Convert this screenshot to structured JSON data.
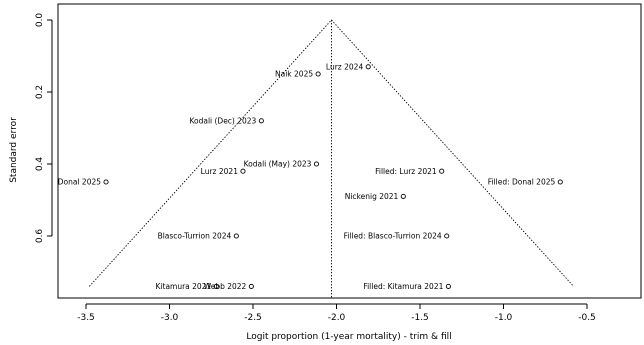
{
  "chart_data": {
    "type": "scatter",
    "subtype": "funnel-plot",
    "xlabel": "Logit proportion (1-year mortality) - trim & fill",
    "ylabel": "Standard error",
    "xlim": [
      -3.55,
      -0.7
    ],
    "ylim": [
      0,
      0.75
    ],
    "y_reversed": true,
    "xticks": [
      -3.5,
      -3.0,
      -2.5,
      -2.0,
      -1.5,
      -1.0,
      -0.5
    ],
    "xtick_labels": [
      "-3.5",
      "-3.0",
      "-2.5",
      "-2.0",
      "-1.5",
      "-1.0",
      "-0.5"
    ],
    "yticks": [
      0.0,
      0.2,
      0.4,
      0.6
    ],
    "ytick_labels": [
      "0.0",
      "0.2",
      "0.4",
      "0.6"
    ],
    "center_estimate": -2.03,
    "funnel": {
      "apex": [
        -2.03,
        0
      ],
      "bottom_left": [
        -3.48,
        0.74
      ],
      "bottom_right": [
        -0.58,
        0.74
      ]
    },
    "points": [
      {
        "label": "Lurz 2024",
        "x": -1.81,
        "y": 0.13,
        "label_side": "left"
      },
      {
        "label": "Naik 2025",
        "x": -2.11,
        "y": 0.15,
        "label_side": "left"
      },
      {
        "label": "Kodali (Dec) 2023",
        "x": -2.45,
        "y": 0.28,
        "label_side": "left"
      },
      {
        "label": "Kodali (May) 2023",
        "x": -2.12,
        "y": 0.4,
        "label_side": "left"
      },
      {
        "label": "Lurz 2021",
        "x": -2.56,
        "y": 0.42,
        "label_side": "left"
      },
      {
        "label": "Donal 2025",
        "x": -3.38,
        "y": 0.45,
        "label_side": "left"
      },
      {
        "label": "Nickenig 2021",
        "x": -1.6,
        "y": 0.49,
        "label_side": "left"
      },
      {
        "label": "Blasco-Turrion 2024",
        "x": -2.6,
        "y": 0.6,
        "label_side": "left"
      },
      {
        "label": "Kitamura 2021",
        "x": -2.72,
        "y": 0.74,
        "label_side": "left"
      },
      {
        "label": "Webb 2022",
        "x": -2.51,
        "y": 0.74,
        "label_side": "left"
      },
      {
        "label": "Filled: Lurz 2021",
        "x": -1.37,
        "y": 0.42,
        "label_side": "left"
      },
      {
        "label": "Filled: Donal 2025",
        "x": -0.66,
        "y": 0.45,
        "label_side": "left"
      },
      {
        "label": "Filled: Blasco-Turrion 2024",
        "x": -1.34,
        "y": 0.6,
        "label_side": "left"
      },
      {
        "label": "Filled: Kitamura 2021",
        "x": -1.33,
        "y": 0.74,
        "label_side": "left"
      }
    ]
  }
}
